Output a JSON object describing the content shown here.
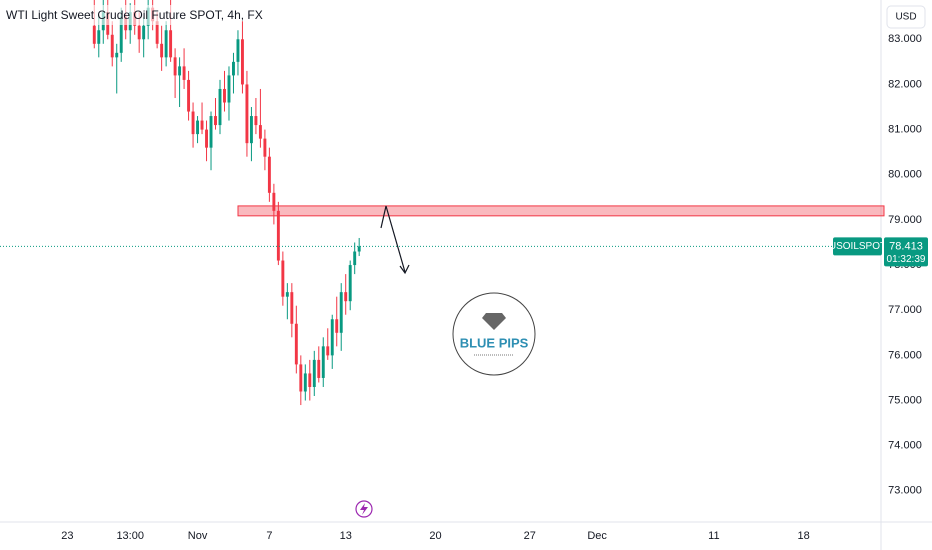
{
  "chart_data": {
    "type": "candlestick",
    "title": "WTI Light Sweet Crude Oil Future SPOT, 4h, FX",
    "currency": "USD",
    "symbol": "USOILSPOT",
    "last_price": 78.413,
    "countdown": "01:32:39",
    "logo_text": "BLUE PIPS",
    "up_color": "#089981",
    "down_color": "#f23645",
    "zone_color": "#f23645",
    "grid": false,
    "zone": [
      79.09,
      79.31
    ],
    "xlim": [
      -21,
      175
    ],
    "ylim": [
      72.31,
      83.87
    ],
    "xticks": [
      {
        "value": -6,
        "label": "23"
      },
      {
        "value": 8,
        "label": "13:00"
      },
      {
        "value": 23,
        "label": "Nov"
      },
      {
        "value": 39,
        "label": "7"
      },
      {
        "value": 56,
        "label": "13"
      },
      {
        "value": 76,
        "label": "20"
      },
      {
        "value": 97,
        "label": "27"
      },
      {
        "value": 112,
        "label": "Dec"
      },
      {
        "value": 138,
        "label": "11"
      },
      {
        "value": 158,
        "label": "18"
      }
    ],
    "yticks": [
      {
        "value": 73,
        "label": "73.000"
      },
      {
        "value": 74,
        "label": "74.000"
      },
      {
        "value": 75,
        "label": "75.000"
      },
      {
        "value": 76,
        "label": "76.000"
      },
      {
        "value": 77,
        "label": "77.000"
      },
      {
        "value": 78,
        "label": "78.000"
      },
      {
        "value": 79,
        "label": "79.000"
      },
      {
        "value": 80,
        "label": "80.000"
      },
      {
        "value": 81,
        "label": "81.000"
      },
      {
        "value": 82,
        "label": "82.000"
      },
      {
        "value": 83,
        "label": "83.000"
      }
    ],
    "x": [
      0,
      1,
      2,
      3,
      4,
      5,
      6,
      7,
      8,
      9,
      10,
      11,
      12,
      13,
      14,
      15,
      16,
      17,
      18,
      19,
      20,
      21,
      22,
      23,
      24,
      25,
      26,
      27,
      28,
      29,
      30,
      31,
      32,
      33,
      34,
      35,
      36,
      37,
      38,
      39,
      40,
      41,
      42,
      43,
      44,
      45,
      46,
      47,
      48,
      49,
      50,
      51,
      52,
      53,
      54,
      55,
      56,
      57,
      58,
      59
    ],
    "open": [
      83.3,
      82.9,
      83.2,
      83.6,
      83.1,
      82.6,
      82.7,
      83.5,
      83.2,
      83.6,
      83.3,
      83.0,
      83.3,
      83.7,
      83.4,
      82.9,
      82.6,
      83.2,
      82.6,
      82.2,
      82.4,
      82.1,
      81.4,
      80.9,
      81.2,
      81.0,
      80.6,
      81.3,
      81.1,
      81.9,
      81.6,
      82.2,
      82.5,
      83.0,
      82.0,
      80.7,
      81.3,
      81.1,
      80.8,
      80.4,
      79.6,
      79.2,
      78.1,
      77.3,
      77.4,
      76.7,
      75.8,
      75.2,
      75.6,
      75.3,
      75.9,
      75.5,
      76.2,
      76.0,
      76.8,
      76.5,
      77.4,
      77.2,
      78.0,
      78.3
    ],
    "high": [
      83.9,
      83.5,
      83.9,
      83.9,
      83.4,
      82.9,
      83.7,
      83.9,
      83.8,
      83.9,
      83.6,
      83.5,
      83.9,
      83.9,
      83.6,
      83.3,
      83.4,
      83.9,
      82.8,
      82.6,
      82.8,
      82.3,
      81.6,
      81.3,
      81.6,
      81.2,
      81.4,
      81.7,
      82.1,
      82.3,
      82.4,
      82.7,
      83.2,
      83.4,
      82.3,
      81.5,
      81.7,
      81.9,
      81.0,
      80.6,
      79.8,
      79.4,
      78.3,
      77.6,
      77.6,
      77.1,
      76.0,
      75.8,
      75.9,
      76.1,
      76.2,
      76.4,
      76.6,
      76.9,
      77.3,
      77.6,
      77.8,
      78.1,
      78.5,
      78.6
    ],
    "low": [
      82.8,
      82.6,
      82.9,
      83.0,
      82.4,
      81.8,
      82.5,
      83.0,
      82.9,
      83.1,
      82.7,
      82.6,
      83.0,
      83.2,
      82.8,
      82.3,
      82.4,
      82.5,
      81.7,
      81.5,
      81.9,
      81.2,
      80.6,
      80.7,
      80.9,
      80.3,
      80.1,
      81.0,
      80.9,
      81.4,
      81.2,
      81.8,
      82.2,
      81.8,
      80.4,
      80.3,
      80.9,
      80.6,
      80.1,
      79.4,
      78.9,
      78.0,
      77.1,
      76.8,
      76.4,
      75.6,
      74.9,
      75.0,
      75.0,
      75.1,
      75.4,
      75.3,
      75.9,
      75.7,
      76.2,
      76.1,
      76.9,
      77.0,
      77.8,
      78.2
    ],
    "close": [
      82.9,
      83.2,
      83.6,
      83.1,
      82.6,
      82.7,
      83.5,
      83.2,
      83.6,
      83.3,
      83.0,
      83.3,
      83.7,
      83.4,
      82.9,
      82.6,
      83.2,
      82.6,
      82.2,
      82.4,
      82.1,
      81.4,
      80.9,
      81.2,
      81.0,
      80.6,
      81.3,
      81.1,
      81.9,
      81.6,
      82.2,
      82.5,
      83.0,
      82.0,
      80.7,
      81.3,
      81.1,
      80.8,
      80.4,
      79.6,
      79.2,
      78.1,
      77.3,
      77.4,
      76.7,
      75.8,
      75.2,
      75.6,
      75.3,
      75.9,
      75.5,
      76.2,
      76.0,
      76.8,
      76.5,
      77.4,
      77.2,
      78.0,
      78.3,
      78.413
    ]
  }
}
